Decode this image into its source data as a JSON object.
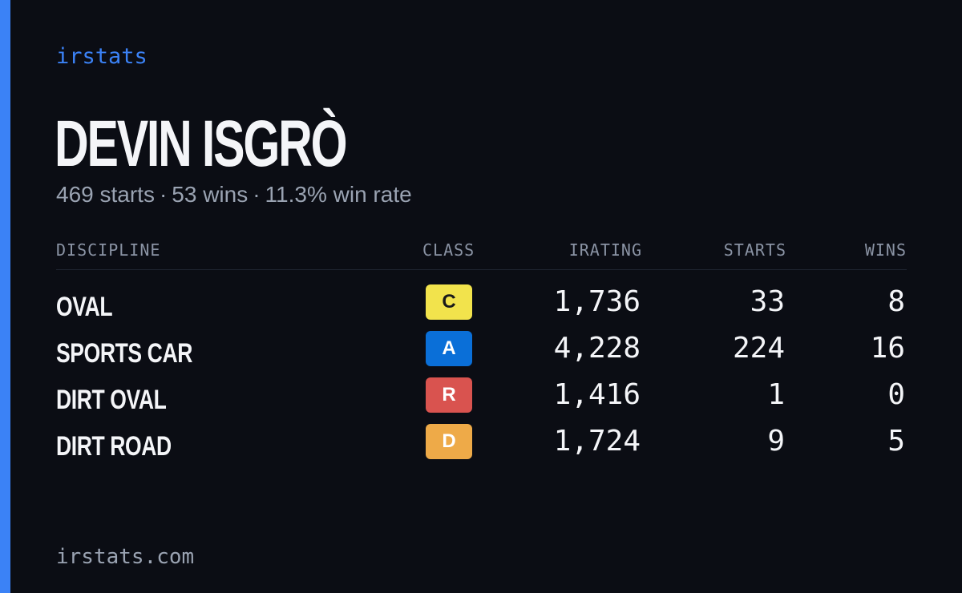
{
  "brand": "irstats",
  "driver": {
    "name": "DEVIN ISGRÒ",
    "starts_text": "469 starts",
    "wins_text": "53 wins",
    "win_rate_text": "11.3% win rate",
    "separator": "·"
  },
  "colors": {
    "accent": "#3b82f6",
    "background": "#0b0d14",
    "class_C": "#f2e34c",
    "class_A": "#0a6fd8",
    "class_R": "#d9534f",
    "class_D": "#eeaa48"
  },
  "table": {
    "headers": {
      "discipline": "DISCIPLINE",
      "class": "CLASS",
      "irating": "IRATING",
      "starts": "STARTS",
      "wins": "WINS"
    },
    "rows": [
      {
        "discipline": "OVAL",
        "class": "C",
        "irating": "1,736",
        "starts": "33",
        "wins": "8"
      },
      {
        "discipline": "SPORTS CAR",
        "class": "A",
        "irating": "4,228",
        "starts": "224",
        "wins": "16"
      },
      {
        "discipline": "DIRT OVAL",
        "class": "R",
        "irating": "1,416",
        "starts": "1",
        "wins": "0"
      },
      {
        "discipline": "DIRT ROAD",
        "class": "D",
        "irating": "1,724",
        "starts": "9",
        "wins": "5"
      }
    ]
  },
  "footer": "irstats.com"
}
